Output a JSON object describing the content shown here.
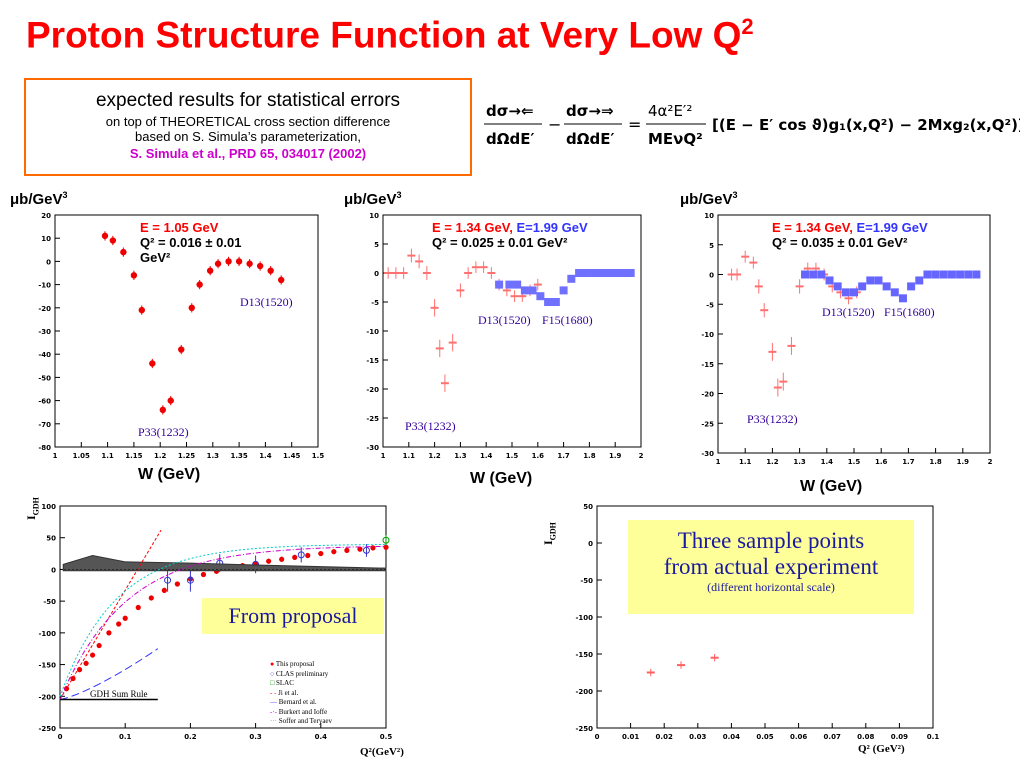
{
  "title": "Proton Structure Function at Very Low Q",
  "title_sup": "2",
  "box": {
    "line1": "expected results for statistical errors",
    "line2": "on top of THEORETICAL cross section difference",
    "line3": "based on S. Simula’s parameterization,",
    "line4": "S. Simula et al., PRD 65, 034017 (2002)"
  },
  "formula": {
    "lhs_num1": "dσ→⇐",
    "lhs_den1": "dΩdE′",
    "minus": "−",
    "lhs_num2": "dσ→⇒",
    "lhs_den2": "dΩdE′",
    "equals": "=",
    "rhs_num": "4α²E′²",
    "rhs_den": "MEνQ²",
    "bracket": "[(E − E′ cos ϑ)g₁(x,Q²) − 2Mxg₂(x,Q²)]"
  },
  "units": {
    "prefix": "μb/GeV",
    "sup": "3"
  },
  "wlabel": "W (GeV)",
  "colors": {
    "title": "#ff0000",
    "box_border": "#ff6a00",
    "red_points": "#ff0000",
    "pink_points": "#ff8080",
    "blue_points": "#6666ff",
    "ann": "#330099",
    "yellow": "#ffff99"
  },
  "panels": [
    {
      "id": "p1",
      "label_red": "E = 1.05 GeV",
      "label_blue": "",
      "q2_line": "Q² = 0.016 ± 0.01",
      "q2_line2": "GeV²",
      "res_a": "P33(1232)",
      "res_b": "D13(1520)",
      "res_c": ""
    },
    {
      "id": "p2",
      "label_red": "E = 1.34 GeV,",
      "label_blue": "E=1.99 GeV",
      "q2_line": "Q² = 0.025 ± 0.01  GeV²",
      "q2_line2": "",
      "res_a": "P33(1232)",
      "res_b": "D13(1520)",
      "res_c": "F15(1680)"
    },
    {
      "id": "p3",
      "label_red": "E = 1.34 GeV,",
      "label_blue": "E=1.99 GeV",
      "q2_line": "Q² = 0.035 ± 0.01  GeV²",
      "q2_line2": "",
      "res_a": "P33(1232)",
      "res_b": "D13(1520)",
      "res_c": "F15(1680)"
    }
  ],
  "gdh": {
    "ylabel": "I",
    "ylabel_sub": "GDH",
    "xlabel": "Q²(GeV²)",
    "label_box": "From proposal",
    "sumrule": "GDH Sum Rule",
    "legend": [
      "This proposal",
      "CLAS preliminary",
      "SLAC",
      "Ji et al.",
      "Bernard et al.",
      "Burkert and Ioffe",
      "Soffer and Teryaev"
    ]
  },
  "sample": {
    "ylabel": "I",
    "ylabel_sub": "GDH",
    "xlabel": "Q² (GeV²)",
    "box_line1": "Three sample points",
    "box_line2": "from actual experiment",
    "box_line3": "(different horizontal scale)"
  },
  "chart_data": [
    {
      "type": "scatter",
      "title": "",
      "xlabel": "W (GeV)",
      "ylabel": "μb/GeV³",
      "xlim": [
        1.0,
        1.5
      ],
      "ylim": [
        -80,
        20
      ],
      "xticks": [
        "1",
        "1.05",
        "1.1",
        "1.15",
        "1.2",
        "1.25",
        "1.3",
        "1.35",
        "1.4",
        "1.45",
        "1.5"
      ],
      "yticks": [
        "20",
        "10",
        "0",
        "-10",
        "-20",
        "-30",
        "-40",
        "-50",
        "-60",
        "-70",
        "-80"
      ],
      "series": [
        {
          "name": "E = 1.05 GeV",
          "x": [
            1.095,
            1.11,
            1.13,
            1.15,
            1.165,
            1.185,
            1.205,
            1.22,
            1.24,
            1.26,
            1.275,
            1.295,
            1.31,
            1.33,
            1.35,
            1.37,
            1.39,
            1.41,
            1.43
          ],
          "y": [
            11,
            9,
            4,
            -6,
            -21,
            -44,
            -64,
            -60,
            -38,
            -20,
            -10,
            -4,
            -1,
            0,
            0,
            -1,
            -2,
            -4,
            -8
          ],
          "err": [
            2,
            2,
            2,
            2,
            2,
            2,
            2,
            2,
            2,
            2,
            2,
            2,
            2,
            2,
            2,
            2,
            2,
            2,
            2
          ]
        }
      ]
    },
    {
      "type": "scatter",
      "title": "",
      "xlabel": "W (GeV)",
      "ylabel": "μb/GeV³",
      "xlim": [
        1.0,
        2.0
      ],
      "ylim": [
        -30,
        10
      ],
      "xticks": [
        "1",
        "1.1",
        "1.2",
        "1.3",
        "1.4",
        "1.5",
        "1.6",
        "1.7",
        "1.8",
        "1.9",
        "2"
      ],
      "yticks": [
        "10",
        "5",
        "0",
        "-5",
        "-10",
        "-15",
        "-20",
        "-25",
        "-30"
      ],
      "series": [
        {
          "name": "E = 1.34 GeV",
          "x": [
            1.02,
            1.05,
            1.08,
            1.11,
            1.14,
            1.17,
            1.2,
            1.22,
            1.24,
            1.27,
            1.3,
            1.33,
            1.36,
            1.39,
            1.42,
            1.45,
            1.48,
            1.51,
            1.54,
            1.57,
            1.6
          ],
          "y": [
            0,
            0,
            0,
            3,
            2,
            0,
            -6,
            -13,
            -19,
            -12,
            -3,
            0,
            1,
            1,
            0,
            -2,
            -3,
            -4,
            -4,
            -3,
            -2
          ],
          "err": [
            1,
            1,
            1,
            1.2,
            1.2,
            1.2,
            1.5,
            1.5,
            1.5,
            1.5,
            1.2,
            1,
            1,
            1,
            1,
            1,
            1,
            1,
            1,
            1,
            1
          ]
        },
        {
          "name": "E=1.99 GeV",
          "x": [
            1.45,
            1.49,
            1.52,
            1.55,
            1.58,
            1.61,
            1.64,
            1.67,
            1.7,
            1.73,
            1.76,
            1.79,
            1.82,
            1.85,
            1.88,
            1.91,
            1.94,
            1.96
          ],
          "y": [
            -2,
            -2,
            -2,
            -3,
            -3,
            -4,
            -5,
            -5,
            -3,
            -1,
            0,
            0,
            0,
            0,
            0,
            0,
            0,
            0
          ],
          "err": [
            0.6,
            0.6,
            0.6,
            0.6,
            0.6,
            0.6,
            0.6,
            0.6,
            0.6,
            0.6,
            0.6,
            0.6,
            0.6,
            0.6,
            0.6,
            0.6,
            0.6,
            0.6
          ]
        }
      ]
    },
    {
      "type": "scatter",
      "title": "",
      "xlabel": "W (GeV)",
      "ylabel": "μb/GeV³",
      "xlim": [
        1.0,
        2.0
      ],
      "ylim": [
        -30,
        10
      ],
      "xticks": [
        "1",
        "1.1",
        "1.2",
        "1.3",
        "1.4",
        "1.5",
        "1.6",
        "1.7",
        "1.8",
        "1.9",
        "2"
      ],
      "yticks": [
        "10",
        "5",
        "0",
        "-5",
        "-10",
        "-15",
        "-20",
        "-25",
        "-30"
      ],
      "series": [
        {
          "name": "E = 1.34 GeV",
          "x": [
            1.05,
            1.07,
            1.1,
            1.13,
            1.15,
            1.17,
            1.2,
            1.22,
            1.24,
            1.27,
            1.3,
            1.33,
            1.36,
            1.39,
            1.42,
            1.45,
            1.48,
            1.51
          ],
          "y": [
            0,
            0,
            3,
            2,
            -2,
            -6,
            -13,
            -19,
            -18,
            -12,
            -2,
            1,
            1,
            0,
            -2,
            -3,
            -4,
            -3
          ],
          "err": [
            1,
            1,
            1,
            1,
            1.2,
            1.2,
            1.5,
            1.5,
            1.5,
            1.5,
            1.2,
            1,
            1,
            1,
            1,
            1,
            1,
            1
          ]
        },
        {
          "name": "E=1.99 GeV",
          "x": [
            1.32,
            1.35,
            1.38,
            1.41,
            1.44,
            1.47,
            1.5,
            1.53,
            1.56,
            1.59,
            1.62,
            1.65,
            1.68,
            1.71,
            1.74,
            1.77,
            1.8,
            1.83,
            1.86,
            1.89,
            1.92,
            1.95
          ],
          "y": [
            0,
            0,
            0,
            -1,
            -2,
            -3,
            -3,
            -2,
            -1,
            -1,
            -2,
            -3,
            -4,
            -2,
            -1,
            0,
            0,
            0,
            0,
            0,
            0,
            0
          ],
          "err": [
            0.6,
            0.6,
            0.6,
            0.6,
            0.6,
            0.6,
            0.6,
            0.6,
            0.6,
            0.6,
            0.6,
            0.6,
            0.6,
            0.6,
            0.6,
            0.6,
            0.6,
            0.6,
            0.6,
            0.6,
            0.6,
            0.6
          ]
        }
      ]
    },
    {
      "type": "scatter",
      "title": "",
      "xlabel": "Q²(GeV²)",
      "ylabel": "IGDH",
      "xlim": [
        0,
        0.5
      ],
      "ylim": [
        -250,
        100
      ],
      "xticks": [
        "0",
        "0.1",
        "0.2",
        "0.3",
        "0.4",
        "0.5"
      ],
      "yticks": [
        "100",
        "50",
        "0",
        "-50",
        "-100",
        "-150",
        "-200",
        "-250"
      ],
      "series": [
        {
          "name": "This proposal",
          "x": [
            0.01,
            0.02,
            0.03,
            0.04,
            0.05,
            0.06,
            0.075,
            0.09,
            0.1,
            0.12,
            0.14,
            0.16,
            0.18,
            0.2,
            0.22,
            0.24,
            0.26,
            0.28,
            0.3,
            0.32,
            0.34,
            0.36,
            0.38,
            0.4,
            0.42,
            0.44,
            0.46,
            0.48,
            0.5
          ],
          "y": [
            -188,
            -172,
            -158,
            -148,
            -135,
            -120,
            -100,
            -86,
            -77,
            -60,
            -45,
            -33,
            -23,
            -15,
            -8,
            -3,
            2,
            6,
            9,
            13,
            16,
            19,
            22,
            25,
            28,
            30,
            32,
            34,
            35
          ],
          "err": [
            4,
            4,
            4,
            4,
            4,
            4,
            4,
            4,
            4,
            4,
            4,
            4,
            4,
            4,
            4,
            4,
            4,
            4,
            4,
            4,
            4,
            4,
            4,
            4,
            4,
            4,
            4,
            4,
            4
          ]
        },
        {
          "name": "CLAS preliminary",
          "x": [
            0.165,
            0.2,
            0.245,
            0.3,
            0.37,
            0.47
          ],
          "y": [
            -17,
            -17,
            10,
            8,
            23,
            30
          ],
          "err": [
            18,
            18,
            14,
            14,
            12,
            10
          ]
        },
        {
          "name": "SLAC",
          "x": [
            0.5
          ],
          "y": [
            46
          ],
          "err": [
            8
          ]
        }
      ]
    },
    {
      "type": "scatter",
      "title": "",
      "xlabel": "Q² (GeV²)",
      "ylabel": "IGDH",
      "xlim": [
        0,
        0.1
      ],
      "ylim": [
        -250,
        50
      ],
      "xticks": [
        "0",
        "0.01",
        "0.02",
        "0.03",
        "0.04",
        "0.05",
        "0.06",
        "0.07",
        "0.08",
        "0.09",
        "0.1"
      ],
      "yticks": [
        "50",
        "0",
        "-50",
        "-100",
        "-150",
        "-200",
        "-250"
      ],
      "series": [
        {
          "name": "",
          "x": [
            0.016,
            0.025,
            0.035
          ],
          "y": [
            -175,
            -165,
            -155
          ],
          "err": [
            5,
            5,
            5
          ]
        }
      ]
    }
  ]
}
